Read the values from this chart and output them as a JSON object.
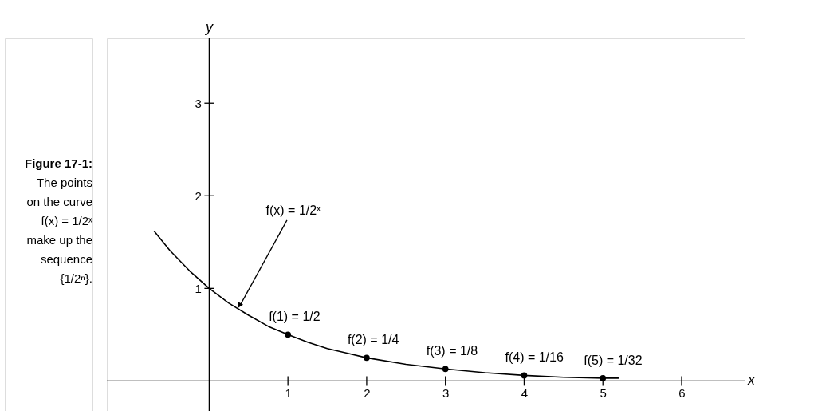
{
  "chart_data": {
    "type": "line",
    "xlabel": "x",
    "ylabel": "y",
    "xlim": [
      -1.3,
      6.8
    ],
    "ylim": [
      -0.35,
      3.7
    ],
    "xticks": [
      1,
      2,
      3,
      4,
      5,
      6
    ],
    "yticks": [
      1,
      2,
      3
    ],
    "grid": false,
    "series": [
      {
        "color": "#000000",
        "marker": "none",
        "line_style": "solid",
        "x": [
          -0.7,
          -0.5,
          -0.25,
          0,
          0.25,
          0.5,
          0.75,
          1,
          1.25,
          1.5,
          1.75,
          2,
          2.5,
          3,
          3.5,
          4,
          4.5,
          5,
          5.2
        ],
        "values": [
          1.62,
          1.41,
          1.19,
          1,
          0.84,
          0.71,
          0.59,
          0.5,
          0.42,
          0.35,
          0.3,
          0.25,
          0.18,
          0.13,
          0.09,
          0.06,
          0.04,
          0.03,
          0.03
        ]
      },
      {
        "type": "scatter",
        "color": "#000000",
        "marker": "circle",
        "x": [
          1,
          2,
          3,
          4,
          5
        ],
        "values": [
          0.5,
          0.25,
          0.13,
          0.06,
          0.03
        ]
      }
    ],
    "annotations": [
      {
        "text": "f(x) = 1/2ˣ",
        "x": 0.36,
        "y": 0.78
      },
      {
        "text": "f(1) = 1/2",
        "x": 1,
        "y": 0.5
      },
      {
        "text": "f(2) = 1/4",
        "x": 2,
        "y": 0.25
      },
      {
        "text": "f(3) = 1/8",
        "x": 3,
        "y": 0.13
      },
      {
        "text": "f(4) = 1/16",
        "x": 4,
        "y": 0.06
      },
      {
        "text": "f(5) = 1/32",
        "x": 5,
        "y": 0.03
      },
      "Figure 17-1:",
      "The points on the curve f(x) = 1/2ˣ make up the sequence {1/2ⁿ}."
    ]
  }
}
